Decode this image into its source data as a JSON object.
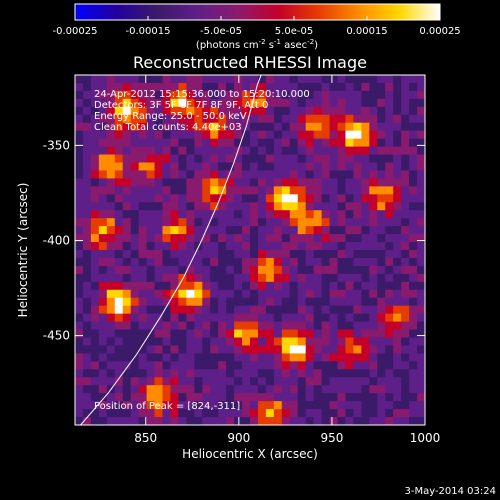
{
  "colorbar": {
    "ticks": [
      "-0.00025",
      "-0.00015",
      "-5.0e-05",
      "5.0e-05",
      "0.00015",
      "0.00025"
    ],
    "tick_values": [
      -0.00025,
      -0.00015,
      -5e-05,
      5e-05,
      0.00015,
      0.00025
    ],
    "range": [
      -0.00025,
      0.00025
    ],
    "units_main": "(photons cm",
    "units_sup1": "-2",
    "units_mid": " s",
    "units_sup2": "-1",
    "units_mid2": " asec",
    "units_sup3": "-2",
    "units_end": ")",
    "colors": [
      "#0000ff",
      "#2200a0",
      "#3b1a6a",
      "#5e1f88",
      "#8a1a6e",
      "#c4002a",
      "#e63c00",
      "#ff8c00",
      "#ffd700",
      "#ffffff"
    ]
  },
  "chart_data": {
    "type": "heatmap",
    "title": "Reconstructed RHESSI Image",
    "xlabel": "Heliocentric X (arcsec)",
    "ylabel": "Heliocentric Y (arcsec)",
    "xlim": [
      812,
      1000
    ],
    "ylim": [
      -497,
      -313
    ],
    "xticks": [
      850,
      900,
      950,
      1000
    ],
    "yticks": [
      -350,
      -400,
      -450
    ],
    "annotations": [
      "24-Apr-2012 15:15:36.000 to 15:20:10.000",
      "Detectors: 3F 5F 6F 7F 8F 9F, Att 0",
      "Energy Range: 25.0 - 50.0 keV",
      "Clean    Total counts: 4.40e+03"
    ],
    "peak_label": "Position of Peak = [824,-311]",
    "peak_position": [
      824,
      -311
    ],
    "limb_points": [
      [
        815,
        -497
      ],
      [
        830,
        -480
      ],
      [
        845,
        -460
      ],
      [
        858,
        -440
      ],
      [
        870,
        -420
      ],
      [
        880,
        -400
      ],
      [
        889,
        -380
      ],
      [
        897,
        -360
      ],
      [
        904,
        -340
      ],
      [
        910,
        -318
      ],
      [
        912,
        -313
      ]
    ]
  },
  "footer": {
    "date": "3-May-2014 03:24"
  }
}
